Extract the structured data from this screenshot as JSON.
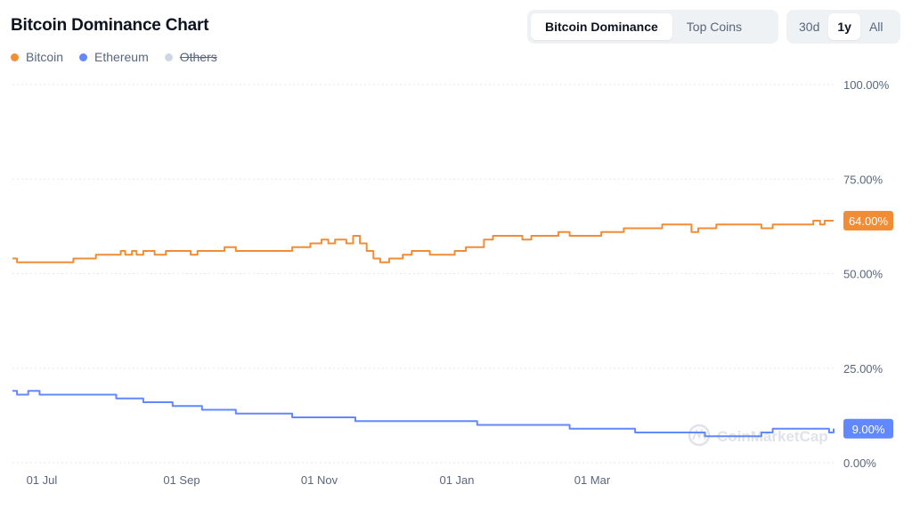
{
  "header": {
    "title": "Bitcoin Dominance Chart",
    "view_tabs": [
      {
        "label": "Bitcoin Dominance",
        "active": true
      },
      {
        "label": "Top Coins",
        "active": false
      }
    ],
    "range_tabs": [
      {
        "label": "30d",
        "active": false
      },
      {
        "label": "1y",
        "active": true
      },
      {
        "label": "All",
        "active": false
      }
    ]
  },
  "watermark": {
    "text": "CoinMarketCap",
    "icon": "coinmarketcap-logo-icon"
  },
  "chart_data": {
    "type": "line",
    "ylim": [
      0,
      100
    ],
    "xlim": [
      "2023-06-18",
      "2024-06-16"
    ],
    "grid": true,
    "legend_position": "top-left",
    "y_ticks": [
      {
        "value": 0,
        "label": "0.00%"
      },
      {
        "value": 25,
        "label": "25.00%"
      },
      {
        "value": 50,
        "label": "50.00%"
      },
      {
        "value": 75,
        "label": "75.00%"
      },
      {
        "value": 100,
        "label": "100.00%"
      }
    ],
    "x_ticks": [
      {
        "value": "2023-07-01",
        "label": "01 Jul"
      },
      {
        "value": "2023-09-01",
        "label": "01 Sep"
      },
      {
        "value": "2023-11-01",
        "label": "01 Nov"
      },
      {
        "value": "2024-01-01",
        "label": "01 Jan"
      },
      {
        "value": "2024-03-01",
        "label": "01 Mar"
      }
    ],
    "series": [
      {
        "name": "Bitcoin",
        "color": "#f28c35",
        "visible": true,
        "last_label": "64.00%",
        "points": [
          [
            "2023-06-18",
            54
          ],
          [
            "2023-06-20",
            53
          ],
          [
            "2023-06-30",
            53
          ],
          [
            "2023-07-05",
            53
          ],
          [
            "2023-07-10",
            53
          ],
          [
            "2023-07-15",
            54
          ],
          [
            "2023-07-20",
            54
          ],
          [
            "2023-07-25",
            55
          ],
          [
            "2023-07-30",
            55
          ],
          [
            "2023-08-05",
            56
          ],
          [
            "2023-08-07",
            55
          ],
          [
            "2023-08-10",
            56
          ],
          [
            "2023-08-12",
            55
          ],
          [
            "2023-08-15",
            56
          ],
          [
            "2023-08-20",
            55
          ],
          [
            "2023-08-25",
            56
          ],
          [
            "2023-09-01",
            56
          ],
          [
            "2023-09-05",
            55
          ],
          [
            "2023-09-08",
            56
          ],
          [
            "2023-09-15",
            56
          ],
          [
            "2023-09-20",
            57
          ],
          [
            "2023-09-25",
            56
          ],
          [
            "2023-10-05",
            56
          ],
          [
            "2023-10-15",
            56
          ],
          [
            "2023-10-20",
            57
          ],
          [
            "2023-10-25",
            57
          ],
          [
            "2023-10-28",
            58
          ],
          [
            "2023-11-02",
            59
          ],
          [
            "2023-11-05",
            58
          ],
          [
            "2023-11-08",
            59
          ],
          [
            "2023-11-10",
            59
          ],
          [
            "2023-11-13",
            58
          ],
          [
            "2023-11-16",
            60
          ],
          [
            "2023-11-19",
            58
          ],
          [
            "2023-11-22",
            56
          ],
          [
            "2023-11-25",
            54
          ],
          [
            "2023-11-28",
            53
          ],
          [
            "2023-11-30",
            53
          ],
          [
            "2023-12-02",
            54
          ],
          [
            "2023-12-08",
            55
          ],
          [
            "2023-12-12",
            56
          ],
          [
            "2023-12-16",
            56
          ],
          [
            "2023-12-20",
            55
          ],
          [
            "2023-12-25",
            55
          ],
          [
            "2023-12-31",
            56
          ],
          [
            "2024-01-05",
            57
          ],
          [
            "2024-01-10",
            57
          ],
          [
            "2024-01-13",
            59
          ],
          [
            "2024-01-17",
            60
          ],
          [
            "2024-01-20",
            60
          ],
          [
            "2024-01-25",
            60
          ],
          [
            "2024-01-30",
            59
          ],
          [
            "2024-02-03",
            60
          ],
          [
            "2024-02-07",
            60
          ],
          [
            "2024-02-10",
            60
          ],
          [
            "2024-02-15",
            61
          ],
          [
            "2024-02-20",
            60
          ],
          [
            "2024-02-28",
            60
          ],
          [
            "2024-03-05",
            61
          ],
          [
            "2024-03-10",
            61
          ],
          [
            "2024-03-15",
            62
          ],
          [
            "2024-03-20",
            62
          ],
          [
            "2024-03-28",
            62
          ],
          [
            "2024-04-01",
            63
          ],
          [
            "2024-04-05",
            63
          ],
          [
            "2024-04-10",
            63
          ],
          [
            "2024-04-14",
            61
          ],
          [
            "2024-04-17",
            62
          ],
          [
            "2024-04-21",
            62
          ],
          [
            "2024-04-25",
            63
          ],
          [
            "2024-04-30",
            63
          ],
          [
            "2024-05-05",
            63
          ],
          [
            "2024-05-10",
            63
          ],
          [
            "2024-05-15",
            62
          ],
          [
            "2024-05-20",
            63
          ],
          [
            "2024-05-27",
            63
          ],
          [
            "2024-06-03",
            63
          ],
          [
            "2024-06-07",
            64
          ],
          [
            "2024-06-10",
            63
          ],
          [
            "2024-06-12",
            64
          ],
          [
            "2024-06-16",
            64
          ]
        ]
      },
      {
        "name": "Ethereum",
        "color": "#6188ff",
        "visible": true,
        "last_label": "9.00%",
        "points": [
          [
            "2023-06-18",
            19
          ],
          [
            "2023-06-20",
            18
          ],
          [
            "2023-06-25",
            19
          ],
          [
            "2023-06-30",
            18
          ],
          [
            "2023-07-10",
            18
          ],
          [
            "2023-07-20",
            18
          ],
          [
            "2023-07-30",
            18
          ],
          [
            "2023-08-03",
            17
          ],
          [
            "2023-08-10",
            17
          ],
          [
            "2023-08-15",
            16
          ],
          [
            "2023-08-25",
            16
          ],
          [
            "2023-08-28",
            15
          ],
          [
            "2023-09-05",
            15
          ],
          [
            "2023-09-10",
            14
          ],
          [
            "2023-09-15",
            14
          ],
          [
            "2023-09-20",
            14
          ],
          [
            "2023-09-25",
            13
          ],
          [
            "2023-10-01",
            13
          ],
          [
            "2023-10-10",
            13
          ],
          [
            "2023-10-20",
            12
          ],
          [
            "2023-10-28",
            12
          ],
          [
            "2023-11-05",
            12
          ],
          [
            "2023-11-10",
            12
          ],
          [
            "2023-11-13",
            12
          ],
          [
            "2023-11-17",
            11
          ],
          [
            "2023-11-22",
            11
          ],
          [
            "2023-11-28",
            11
          ],
          [
            "2023-12-05",
            11
          ],
          [
            "2023-12-15",
            11
          ],
          [
            "2023-12-25",
            11
          ],
          [
            "2023-12-31",
            11
          ],
          [
            "2024-01-05",
            11
          ],
          [
            "2024-01-10",
            10
          ],
          [
            "2024-01-20",
            10
          ],
          [
            "2024-01-30",
            10
          ],
          [
            "2024-02-10",
            10
          ],
          [
            "2024-02-20",
            9
          ],
          [
            "2024-03-01",
            9
          ],
          [
            "2024-03-10",
            9
          ],
          [
            "2024-03-20",
            8
          ],
          [
            "2024-03-25",
            8
          ],
          [
            "2024-04-05",
            8
          ],
          [
            "2024-04-15",
            8
          ],
          [
            "2024-04-20",
            7
          ],
          [
            "2024-04-30",
            7
          ],
          [
            "2024-05-10",
            7
          ],
          [
            "2024-05-15",
            8
          ],
          [
            "2024-05-20",
            9
          ],
          [
            "2024-05-25",
            9
          ],
          [
            "2024-06-01",
            9
          ],
          [
            "2024-06-05",
            9
          ],
          [
            "2024-06-10",
            9
          ],
          [
            "2024-06-14",
            8
          ],
          [
            "2024-06-16",
            9
          ]
        ]
      },
      {
        "name": "Others",
        "color": "#cfd6e4",
        "visible": false,
        "points": []
      }
    ]
  }
}
